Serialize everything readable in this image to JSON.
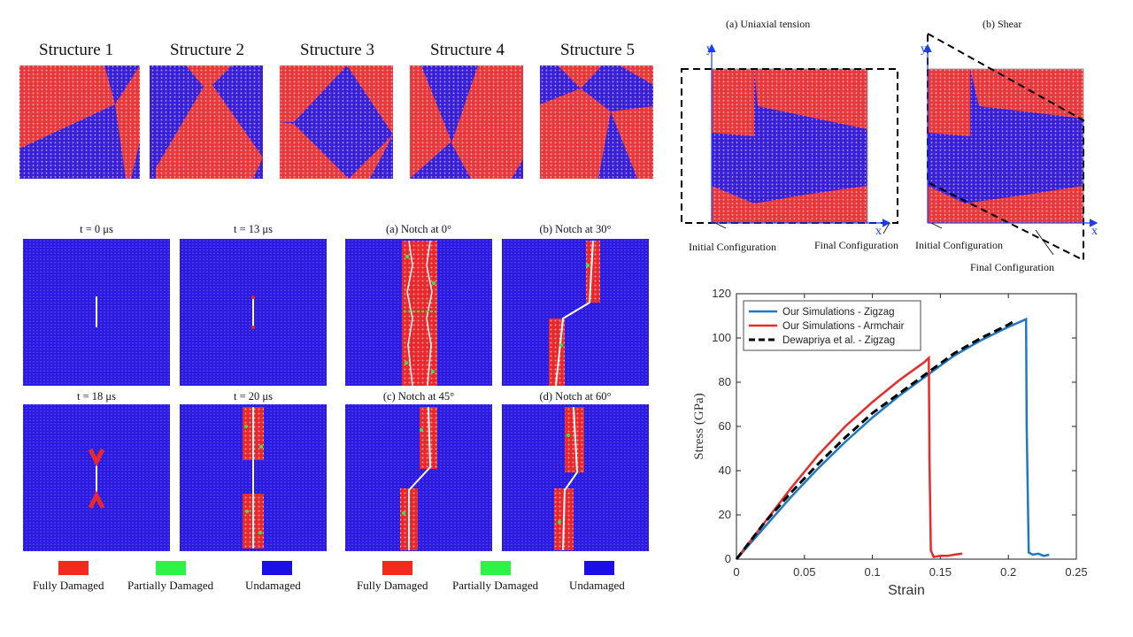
{
  "colors": {
    "red": "#e8383c",
    "blue": "#3a1fd8",
    "green": "#33e84a",
    "white": "#ffffff"
  },
  "structures": {
    "titles": [
      "Structure 1",
      "Structure 2",
      "Structure 3",
      "Structure 4",
      "Structure 5"
    ]
  },
  "crack_sim": {
    "time_titles": [
      "t = 0 μs",
      "t = 13 μs",
      "t = 18 μs",
      "t = 20 μs"
    ],
    "notch_titles": [
      "(a) Notch at 0°",
      "(b) Notch at 30°",
      "(c) Notch at 45°",
      "(d) Notch at 60°"
    ],
    "legend_left": [
      "Fully Damaged",
      "Partially Damaged",
      "Undamaged"
    ],
    "legend_right": [
      "Fully Damaged",
      "Partially Damaged",
      "Undamaged"
    ]
  },
  "loading": {
    "title_a": "(a) Uniaxial tension",
    "title_b": "(b) Shear",
    "axis_x": "x",
    "axis_y": "y",
    "initial_a": "Initial Configuration",
    "final_a": "Final Configuration",
    "initial_b": "Initial Configuration",
    "final_b": "Final Configuration"
  },
  "chart_data": {
    "type": "line",
    "xlabel": "Strain",
    "ylabel": "Stress (GPa)",
    "xlim": [
      0,
      0.25
    ],
    "ylim": [
      0,
      120
    ],
    "xticks": [
      0,
      0.05,
      0.1,
      0.15,
      0.2,
      0.25
    ],
    "xtick_labels": [
      "0",
      "0.05",
      "0.1",
      "0.15",
      "0.2",
      "0.25"
    ],
    "yticks": [
      0,
      20,
      40,
      60,
      80,
      100,
      120
    ],
    "ytick_labels": [
      "0",
      "20",
      "40",
      "60",
      "80",
      "100",
      "120"
    ],
    "legend_position": "top-left",
    "series": [
      {
        "name": "Our Simulations - Zigzag",
        "color": "#1f78c1",
        "style": "solid",
        "x": [
          0,
          0.02,
          0.04,
          0.06,
          0.08,
          0.1,
          0.12,
          0.14,
          0.16,
          0.18,
          0.2,
          0.213,
          0.2135,
          0.215,
          0.218,
          0.222,
          0.226,
          0.23
        ],
        "y": [
          0,
          14,
          28,
          41,
          53,
          64,
          74,
          83,
          92,
          99,
          105,
          108.5,
          60,
          3,
          2,
          2.5,
          1.5,
          2
        ]
      },
      {
        "name": "Our Simulations - Armchair",
        "color": "#e62b2b",
        "style": "solid",
        "x": [
          0,
          0.02,
          0.04,
          0.06,
          0.08,
          0.1,
          0.12,
          0.138,
          0.1415,
          0.142,
          0.143,
          0.145,
          0.15,
          0.155,
          0.16,
          0.166
        ],
        "y": [
          0,
          16,
          32,
          47,
          60,
          71,
          81,
          89,
          91,
          45,
          4,
          1,
          1.5,
          1.5,
          2,
          2.5
        ]
      },
      {
        "name": "Dewapriya et al. - Zigzag",
        "color": "#000000",
        "style": "dashed",
        "x": [
          0,
          0.02,
          0.04,
          0.06,
          0.08,
          0.1,
          0.12,
          0.14,
          0.16,
          0.18,
          0.2,
          0.205
        ],
        "y": [
          0,
          16,
          30,
          43,
          55,
          66,
          75,
          84,
          93,
          100,
          106,
          108
        ]
      }
    ]
  }
}
